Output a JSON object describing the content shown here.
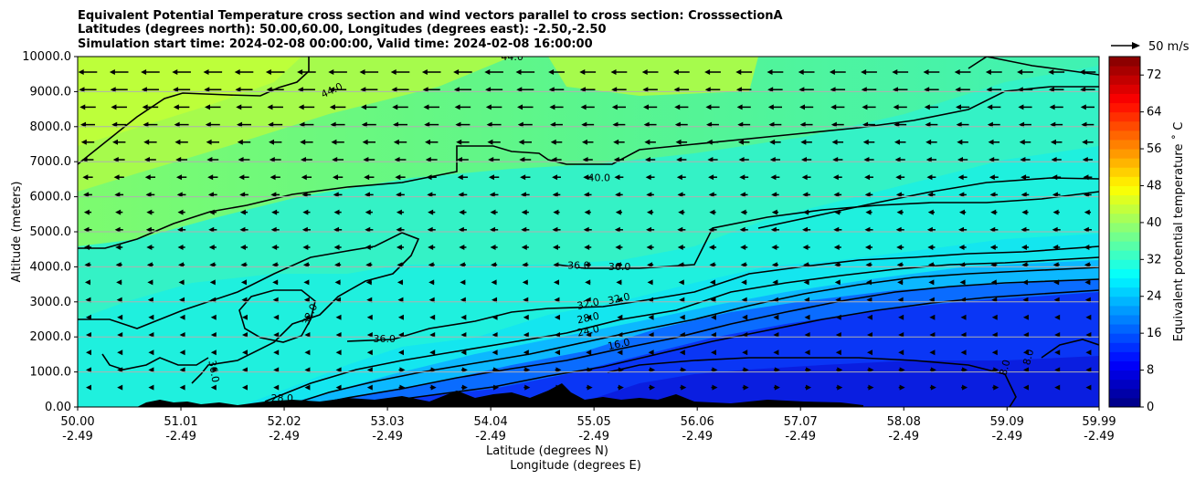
{
  "chart_data": {
    "type": "heatmap",
    "title_lines": [
      "Equivalent Potential Temperature cross section and wind vectors parallel to cross section: CrosssectionA",
      "Latitudes (degrees north): 50.00,60.00, Longitudes (degrees east): -2.50,-2.50",
      "Simulation start time: 2024-02-08 00:00:00, Valid time: 2024-02-08 16:00:00"
    ],
    "ylabel": "Altitude (meters)",
    "xlabel_lat": "Latitude (degrees N)",
    "xlabel_lon": "Longitude (degrees E)",
    "ylim": [
      0,
      10000
    ],
    "y_ticks": [
      "0.00",
      "1000.0",
      "2000.0",
      "3000.0",
      "4000.0",
      "5000.0",
      "6000.0",
      "7000.0",
      "8000.0",
      "9000.0",
      "10000.0"
    ],
    "y_tick_values": [
      0,
      1000,
      2000,
      3000,
      4000,
      5000,
      6000,
      7000,
      8000,
      9000,
      10000
    ],
    "x_range": [
      50.0,
      59.99
    ],
    "x_tick_values": [
      50.0,
      51.01,
      52.02,
      53.03,
      54.04,
      55.05,
      56.06,
      57.07,
      58.08,
      59.09,
      59.99
    ],
    "x_ticks_lat": [
      "50.00",
      "51.01",
      "52.02",
      "53.03",
      "54.04",
      "55.05",
      "56.06",
      "57.07",
      "58.08",
      "59.09",
      "59.99"
    ],
    "x_ticks_lon": [
      "-2.49",
      "-2.49",
      "-2.49",
      "-2.49",
      "-2.49",
      "-2.49",
      "-2.49",
      "-2.49",
      "-2.49",
      "-2.49",
      "-2.49"
    ],
    "colorbar": {
      "label": "Equivalent potential temperature ˚ C",
      "range": [
        0,
        76
      ],
      "ticks": [
        "0",
        "8",
        "16",
        "24",
        "32",
        "40",
        "48",
        "56",
        "64",
        "72"
      ],
      "tick_values": [
        0,
        8,
        16,
        24,
        32,
        40,
        48,
        56,
        64,
        72
      ]
    },
    "quiver_key": "50 m/s",
    "contour_labels": [
      {
        "text": "44.0",
        "lat": 52.5,
        "alt": 8950,
        "rotate": -25
      },
      {
        "text": "44.0",
        "lat": 54.25,
        "alt": 9900,
        "rotate": 0
      },
      {
        "text": "40.0",
        "lat": 55.1,
        "alt": 6450,
        "rotate": 0
      },
      {
        "text": "36.0",
        "lat": 54.9,
        "alt": 3950,
        "rotate": 0
      },
      {
        "text": "36.0",
        "lat": 55.3,
        "alt": 3900,
        "rotate": 0
      },
      {
        "text": "36.0",
        "lat": 53.0,
        "alt": 1850,
        "rotate": 0
      },
      {
        "text": "36.0",
        "lat": 51.3,
        "alt": 1000,
        "rotate": 80
      },
      {
        "text": "32.0",
        "lat": 52.3,
        "alt": 2600,
        "rotate": -65
      },
      {
        "text": "32.0",
        "lat": 55.0,
        "alt": 2850,
        "rotate": -12
      },
      {
        "text": "32.0",
        "lat": 55.3,
        "alt": 3000,
        "rotate": -12
      },
      {
        "text": "28.0",
        "lat": 55.0,
        "alt": 2450,
        "rotate": -12
      },
      {
        "text": "24.0",
        "lat": 55.0,
        "alt": 2080,
        "rotate": -12
      },
      {
        "text": "16.0",
        "lat": 55.3,
        "alt": 1700,
        "rotate": -12
      },
      {
        "text": "8.0",
        "lat": 59.1,
        "alt": 1100,
        "rotate": -75
      },
      {
        "text": "8.0",
        "lat": 59.33,
        "alt": 1400,
        "rotate": -75
      },
      {
        "text": "28.0",
        "lat": 52.0,
        "alt": 150,
        "rotate": 0
      }
    ]
  }
}
